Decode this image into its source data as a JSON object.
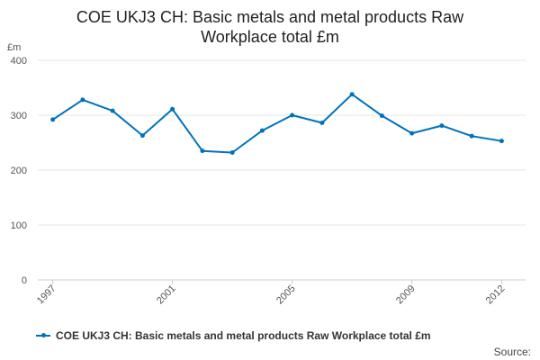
{
  "chart_data": {
    "type": "line",
    "title_line1": "COE UKJ3 CH: Basic metals and metal products Raw",
    "title_line2": "Workplace total £m",
    "y_unit": "£m",
    "ylim": [
      0,
      400
    ],
    "yticks": [
      0,
      100,
      200,
      300,
      400
    ],
    "xticks": [
      1997,
      2001,
      2005,
      2009,
      2012
    ],
    "grid": true,
    "legend_position": "bottom",
    "series": [
      {
        "name": "COE UKJ3 CH: Basic metals and metal products Raw Workplace total £m",
        "color": "#0072bc",
        "x": [
          1997,
          1998,
          1999,
          2000,
          2001,
          2002,
          2003,
          2004,
          2005,
          2006,
          2007,
          2008,
          2009,
          2010,
          2011,
          2012
        ],
        "values": [
          292,
          328,
          308,
          263,
          311,
          235,
          232,
          272,
          300,
          286,
          338,
          299,
          267,
          281,
          262,
          253
        ]
      }
    ]
  },
  "source_label": "Source:"
}
